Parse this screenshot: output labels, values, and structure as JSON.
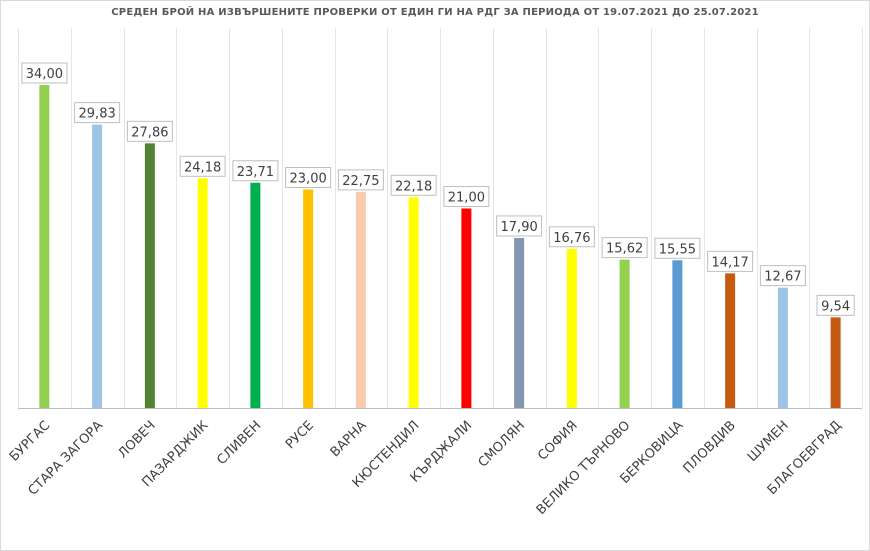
{
  "chart_data": {
    "type": "bar",
    "title": "СРЕДЕН БРОЙ НА ИЗВЪРШЕНИТЕ ПРОВЕРКИ ОТ ЕДИН ГИ НА РДГ ЗА ПЕРИОДА ОТ 19.07.2021 ДО 25.07.2021",
    "xlabel": "",
    "ylabel": "",
    "ylim": [
      0,
      35
    ],
    "grid": "vertical",
    "categories": [
      "БУРГАС",
      "СТАРА ЗАГОРА",
      "ЛОВЕЧ",
      "ПАЗАРДЖИК",
      "СЛИВЕН",
      "РУСЕ",
      "ВАРНА",
      "КЮСТЕНДИЛ",
      "КЪРДЖАЛИ",
      "СМОЛЯН",
      "СОФИЯ",
      "ВЕЛИКО ТЪРНОВО",
      "БЕРКОВИЦА",
      "ПЛОВДИВ",
      "ШУМЕН",
      "БЛАГОЕВГРАД"
    ],
    "values": [
      34.0,
      29.83,
      27.86,
      24.18,
      23.71,
      23.0,
      22.75,
      22.18,
      21.0,
      17.9,
      16.76,
      15.62,
      15.55,
      14.17,
      12.67,
      9.54
    ],
    "labels": [
      "34,00",
      "29,83",
      "27,86",
      "24,18",
      "23,71",
      "23,00",
      "22,75",
      "22,18",
      "21,00",
      "17,90",
      "16,76",
      "15,62",
      "15,55",
      "14,17",
      "12,67",
      "9,54"
    ],
    "colors": [
      "#92d050",
      "#9dc3e6",
      "#548235",
      "#ffff00",
      "#00b050",
      "#ffc000",
      "#f8cbad",
      "#ffff00",
      "#ff0000",
      "#8497b0",
      "#ffff00",
      "#92d050",
      "#5b9bd5",
      "#c55a11",
      "#9dc3e6",
      "#c55a11"
    ]
  }
}
